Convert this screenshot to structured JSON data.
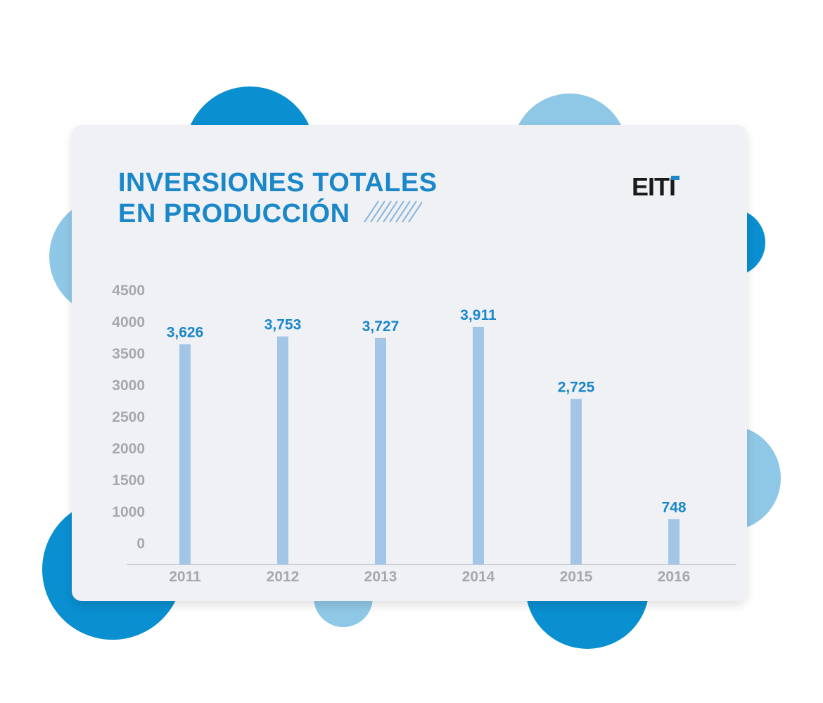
{
  "title_lines": [
    "INVERSIONES TOTALES",
    "EN PRODUCCIÓN"
  ],
  "logo": "EITI",
  "colors": {
    "accent": "#1a87c9",
    "bar": "#a4c6e6",
    "tick": "#a6a8ab",
    "card": "#f0f1f5",
    "blob_dark": "#0a8fd0",
    "blob_light": "#8fc8e6"
  },
  "chart_data": {
    "type": "bar",
    "title": "INVERSIONES TOTALES EN PRODUCCIÓN",
    "categories": [
      "2011",
      "2012",
      "2013",
      "2014",
      "2015",
      "2016"
    ],
    "values": [
      3626,
      3753,
      3727,
      3911,
      2725,
      748
    ],
    "data_labels": [
      "3,626",
      "3,753",
      "3,727",
      "3,911",
      "2,725",
      "748"
    ],
    "yticks": [
      0,
      1000,
      1500,
      2000,
      2500,
      3000,
      3500,
      4000,
      4500
    ],
    "ylim": [
      0,
      4500
    ],
    "grid": false,
    "legend": "none"
  }
}
